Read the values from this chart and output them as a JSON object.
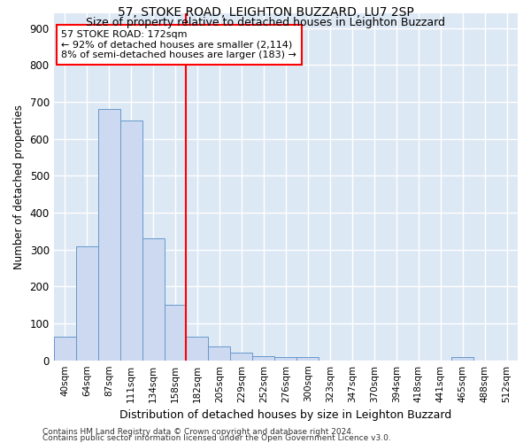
{
  "title1": "57, STOKE ROAD, LEIGHTON BUZZARD, LU7 2SP",
  "title2": "Size of property relative to detached houses in Leighton Buzzard",
  "xlabel": "Distribution of detached houses by size in Leighton Buzzard",
  "ylabel": "Number of detached properties",
  "bar_labels": [
    "40sqm",
    "64sqm",
    "87sqm",
    "111sqm",
    "134sqm",
    "158sqm",
    "182sqm",
    "205sqm",
    "229sqm",
    "252sqm",
    "276sqm",
    "300sqm",
    "323sqm",
    "347sqm",
    "370sqm",
    "394sqm",
    "418sqm",
    "441sqm",
    "465sqm",
    "488sqm",
    "512sqm"
  ],
  "bar_values": [
    63,
    310,
    680,
    650,
    330,
    150,
    65,
    38,
    20,
    12,
    10,
    10,
    0,
    0,
    0,
    0,
    0,
    0,
    10,
    0,
    0
  ],
  "bar_color": "#ccd9f0",
  "bar_edge_color": "#6699cc",
  "vline_x_idx": 6,
  "vline_color": "red",
  "annotation_line1": "57 STOKE ROAD: 172sqm",
  "annotation_line2": "← 92% of detached houses are smaller (2,114)",
  "annotation_line3": "8% of semi-detached houses are larger (183) →",
  "annotation_box_color": "white",
  "annotation_box_edge": "red",
  "ylim": [
    0,
    940
  ],
  "yticks": [
    0,
    100,
    200,
    300,
    400,
    500,
    600,
    700,
    800,
    900
  ],
  "footer1": "Contains HM Land Registry data © Crown copyright and database right 2024.",
  "footer2": "Contains public sector information licensed under the Open Government Licence v3.0.",
  "fig_bg_color": "#ffffff",
  "plot_bg_color": "#dde8f5",
  "grid_color": "#ffffff",
  "title1_fontsize": 10,
  "title2_fontsize": 9
}
